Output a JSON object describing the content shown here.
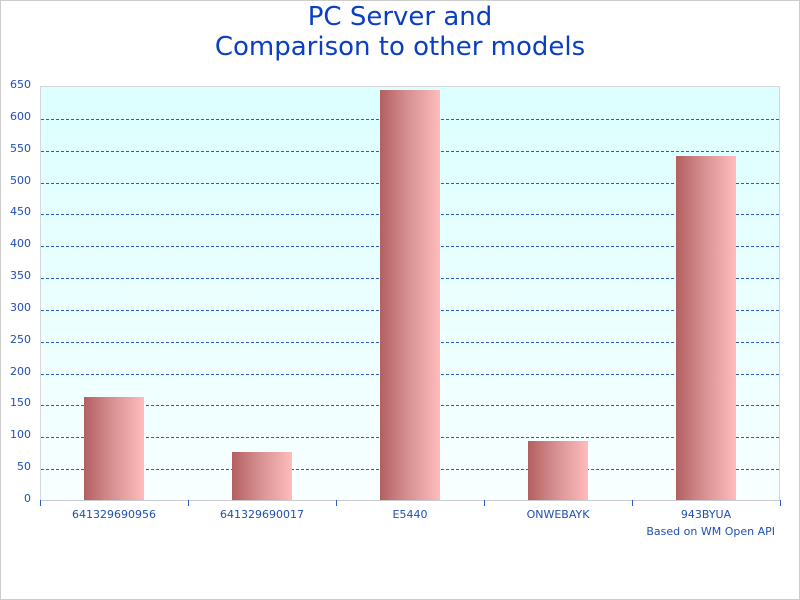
{
  "title": {
    "line1": "PC Server and",
    "line2": "Comparison to other models"
  },
  "credit": "Based on WM Open API",
  "y_ticks": [
    "0",
    "50",
    "100",
    "150",
    "200",
    "250",
    "300",
    "350",
    "400",
    "450",
    "500",
    "550",
    "600",
    "650"
  ],
  "colors": {
    "title": "#0a3fc4",
    "axis_text": "#1f4fb0",
    "grid": "#2a5bbf",
    "bar_dark": "#b35f60",
    "bar_light": "#ffbcbc",
    "plot_bg_top": "#dcffff",
    "plot_bg_bottom": "#f8ffff"
  },
  "chart_data": {
    "type": "bar",
    "title": "PC Server and Comparison to other models",
    "categories": [
      "641329690956",
      "641329690017",
      "E5440",
      "ONWEBAYK",
      "943BYUA"
    ],
    "values": [
      162,
      76,
      644,
      93,
      540
    ],
    "xlabel": "",
    "ylabel": "",
    "ylim": [
      0,
      650
    ],
    "ytick_step": 50,
    "grid": true,
    "legend": null,
    "annotations": [
      "Based on WM Open API"
    ]
  }
}
